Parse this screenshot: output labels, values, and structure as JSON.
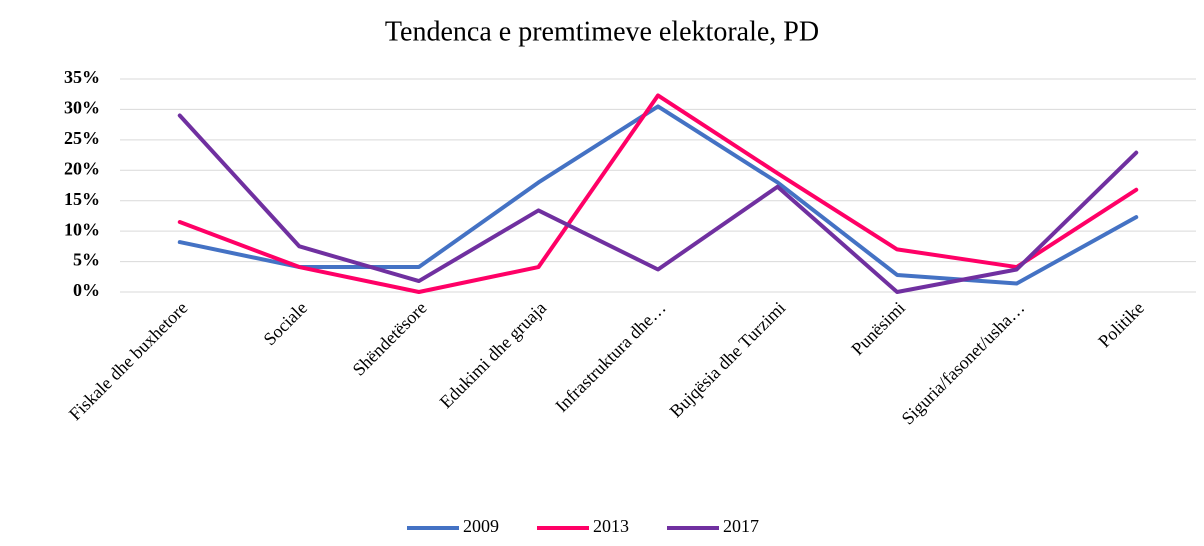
{
  "chart_data": {
    "type": "line",
    "title": "Tendenca e premtimeve elektorale, PD",
    "categories": [
      "Fiskale dhe buxhetore",
      "Sociale",
      "Shëndetësore",
      "Edukimi dhe gruaja",
      "Infrastruktura dhe…",
      "Bujqësia dhe Turzimi",
      "Punësimi",
      "Siguria/fasonet/usha…",
      "Politike"
    ],
    "series": [
      {
        "name": "2009",
        "color": "#4472c4",
        "values": [
          8.2,
          4.1,
          4.1,
          18,
          30.5,
          18,
          2.8,
          1.4,
          12.3
        ]
      },
      {
        "name": "2013",
        "color": "#ff0066",
        "values": [
          11.5,
          4.1,
          0,
          4.1,
          32.3,
          19.5,
          7,
          4.1,
          16.8
        ]
      },
      {
        "name": "2017",
        "color": "#7030a0",
        "values": [
          29,
          7.5,
          1.8,
          13.4,
          3.7,
          17.3,
          0,
          3.7,
          22.9
        ]
      }
    ],
    "ylim": [
      0,
      35
    ],
    "yticks": [
      {
        "value": 0,
        "label": "0%"
      },
      {
        "value": 5,
        "label": "5%"
      },
      {
        "value": 10,
        "label": "10%"
      },
      {
        "value": 15,
        "label": "15%"
      },
      {
        "value": 20,
        "label": "20%"
      },
      {
        "value": 25,
        "label": "25%"
      },
      {
        "value": 30,
        "label": "30%"
      },
      {
        "value": 35,
        "label": "35%"
      }
    ],
    "grid": true,
    "legend": "bottom"
  }
}
